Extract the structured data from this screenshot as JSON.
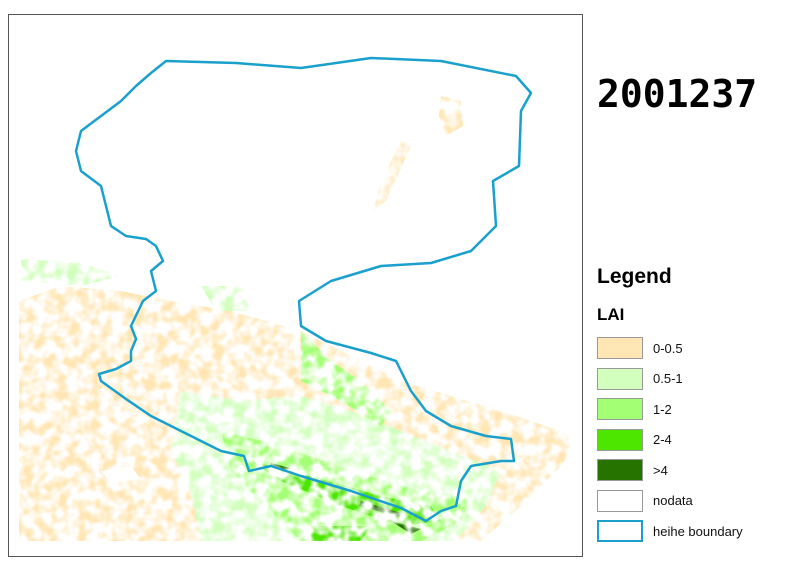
{
  "title": "2001237",
  "legend": {
    "title": "Legend",
    "field": "LAI",
    "items": [
      {
        "label": "0-0.5",
        "color": "#FFE6B4"
      },
      {
        "label": "0.5-1",
        "color": "#D2FFBE"
      },
      {
        "label": "1-2",
        "color": "#A3FF73"
      },
      {
        "label": "2-4",
        "color": "#4CE600"
      },
      {
        "label": ">4",
        "color": "#267300"
      },
      {
        "label": "nodata",
        "color": "#FFFFFF"
      },
      {
        "label": "heihe boundary",
        "color": "#1AA0CC",
        "type": "outline"
      }
    ]
  }
}
